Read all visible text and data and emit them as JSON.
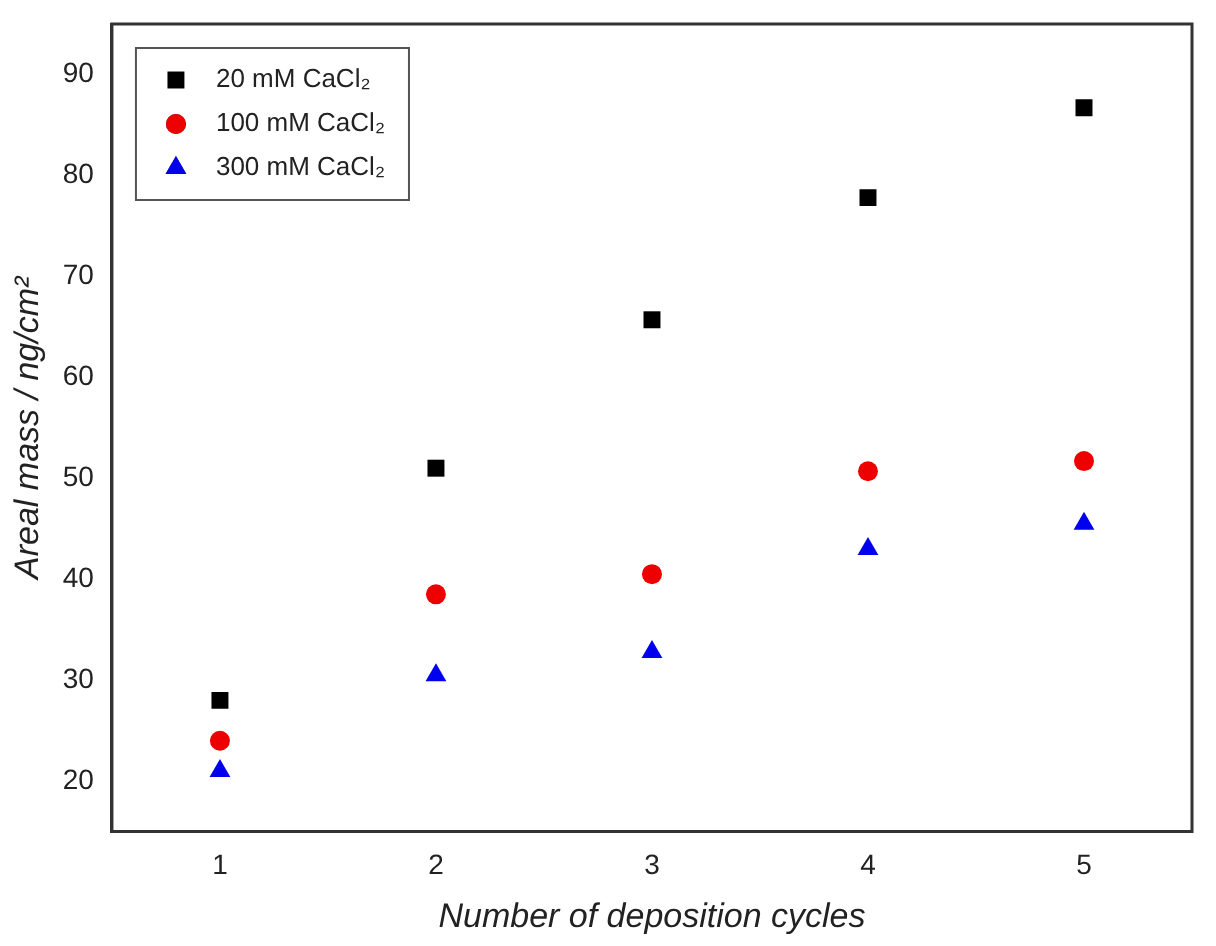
{
  "chart_data": {
    "type": "scatter",
    "xlabel": "Number of deposition cycles",
    "ylabel": "Areal mass / ng/cm²",
    "x": [
      1,
      2,
      3,
      4,
      5
    ],
    "xlim": [
      0.5,
      5.5
    ],
    "xticks": [
      1,
      2,
      3,
      4,
      5
    ],
    "ylim": [
      15,
      95
    ],
    "yticks": [
      20,
      30,
      40,
      50,
      60,
      70,
      80,
      90
    ],
    "grid": false,
    "legend": "top left",
    "series": [
      {
        "name": "20 mM CaCl₂",
        "color": "#000000",
        "marker": "square",
        "values": [
          28,
          51,
          65.7,
          77.8,
          86.7
        ]
      },
      {
        "name": "100 mM CaCl₂",
        "color": "#ee0000",
        "marker": "circle",
        "values": [
          24,
          38.5,
          40.5,
          50.7,
          51.7
        ]
      },
      {
        "name": "300 mM CaCl₂",
        "color": "#0000ee",
        "marker": "triangle",
        "values": [
          21,
          30.5,
          32.8,
          43,
          45.5
        ]
      }
    ]
  }
}
